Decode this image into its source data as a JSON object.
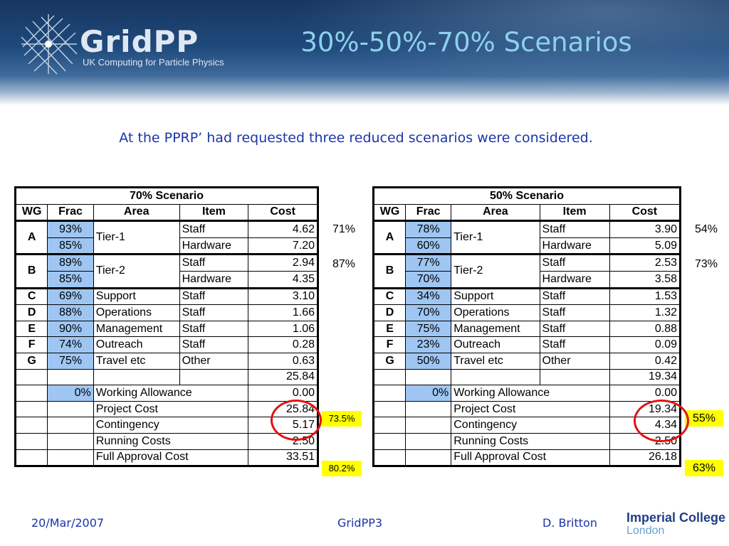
{
  "header": {
    "logo_word": "GridPP",
    "logo_sub": "UK Computing for Particle Physics",
    "title": "30%-50%-70% Scenarios"
  },
  "intro": "At the PPRP’ had requested three reduced scenarios were considered.",
  "colors": {
    "frac_fill": "#9fc6f2",
    "highlight": "#ffff00",
    "circle": "#e01212",
    "text_blue": "#1b35a8"
  },
  "tables": [
    {
      "caption": "70% Scenario",
      "headers": [
        "WG",
        "Frac",
        "Area",
        "Item",
        "Cost"
      ],
      "groups": [
        {
          "wg": "A",
          "area": "Tier-1",
          "rows": [
            {
              "frac": "93%",
              "item": "Staff",
              "cost": "4.62"
            },
            {
              "frac": "85%",
              "item": "Hardware",
              "cost": "7.20"
            }
          ]
        },
        {
          "wg": "B",
          "area": "Tier-2",
          "rows": [
            {
              "frac": "89%",
              "item": "Staff",
              "cost": "2.94"
            },
            {
              "frac": "85%",
              "item": "Hardware",
              "cost": "4.35"
            }
          ]
        }
      ],
      "singles": [
        {
          "wg": "C",
          "frac": "69%",
          "area": "Support",
          "item": "Staff",
          "cost": "3.10"
        },
        {
          "wg": "D",
          "frac": "88%",
          "area": "Operations",
          "item": "Staff",
          "cost": "1.66"
        },
        {
          "wg": "E",
          "frac": "90%",
          "area": "Management",
          "item": "Staff",
          "cost": "1.06"
        },
        {
          "wg": "F",
          "frac": "74%",
          "area": "Outreach",
          "item": "Staff",
          "cost": "0.28"
        },
        {
          "wg": "G",
          "frac": "75%",
          "area": "Travel etc",
          "item": "Other",
          "cost": "0.63"
        }
      ],
      "subtotal": "25.84",
      "allowance": {
        "frac": "0%",
        "label": "Working Allowance",
        "cost": "0.00"
      },
      "summary": [
        {
          "label": "Project Cost",
          "cost": "25.84"
        },
        {
          "label": "Contingency",
          "cost": "5.17"
        },
        {
          "label": "Running Costs",
          "cost": "2.50"
        },
        {
          "label": "Full Approval Cost",
          "cost": "33.51"
        }
      ],
      "side": {
        "tier1": "71%",
        "tier2": "87%",
        "project": "73.5%",
        "full": "80.2%"
      }
    },
    {
      "caption": "50% Scenario",
      "headers": [
        "WG",
        "Frac",
        "Area",
        "Item",
        "Cost"
      ],
      "groups": [
        {
          "wg": "A",
          "area": "Tier-1",
          "rows": [
            {
              "frac": "78%",
              "item": "Staff",
              "cost": "3.90"
            },
            {
              "frac": "60%",
              "item": "Hardware",
              "cost": "5.09"
            }
          ]
        },
        {
          "wg": "B",
          "area": "Tier-2",
          "rows": [
            {
              "frac": "77%",
              "item": "Staff",
              "cost": "2.53"
            },
            {
              "frac": "70%",
              "item": "Hardware",
              "cost": "3.58"
            }
          ]
        }
      ],
      "singles": [
        {
          "wg": "C",
          "frac": "34%",
          "area": "Support",
          "item": "Staff",
          "cost": "1.53"
        },
        {
          "wg": "D",
          "frac": "70%",
          "area": "Operations",
          "item": "Staff",
          "cost": "1.32"
        },
        {
          "wg": "E",
          "frac": "75%",
          "area": "Management",
          "item": "Staff",
          "cost": "0.88"
        },
        {
          "wg": "F",
          "frac": "23%",
          "area": "Outreach",
          "item": "Staff",
          "cost": "0.09"
        },
        {
          "wg": "G",
          "frac": "50%",
          "area": "Travel etc",
          "item": "Other",
          "cost": "0.42"
        }
      ],
      "subtotal": "19.34",
      "allowance": {
        "frac": "0%",
        "label": "Working Allowance",
        "cost": "0.00"
      },
      "summary": [
        {
          "label": "Project Cost",
          "cost": "19.34"
        },
        {
          "label": "Contingency",
          "cost": "4.34"
        },
        {
          "label": "Running Costs",
          "cost": "2.50"
        },
        {
          "label": "Full Approval Cost",
          "cost": "26.18"
        }
      ],
      "side": {
        "tier1": "54%",
        "tier2": "73%",
        "project": "55%",
        "full": "63%"
      }
    }
  ],
  "footer": {
    "date": "20/Mar/2007",
    "center": "GridPP3",
    "author": "D. Britton",
    "org_line1": "Imperial College",
    "org_line2": "London"
  }
}
